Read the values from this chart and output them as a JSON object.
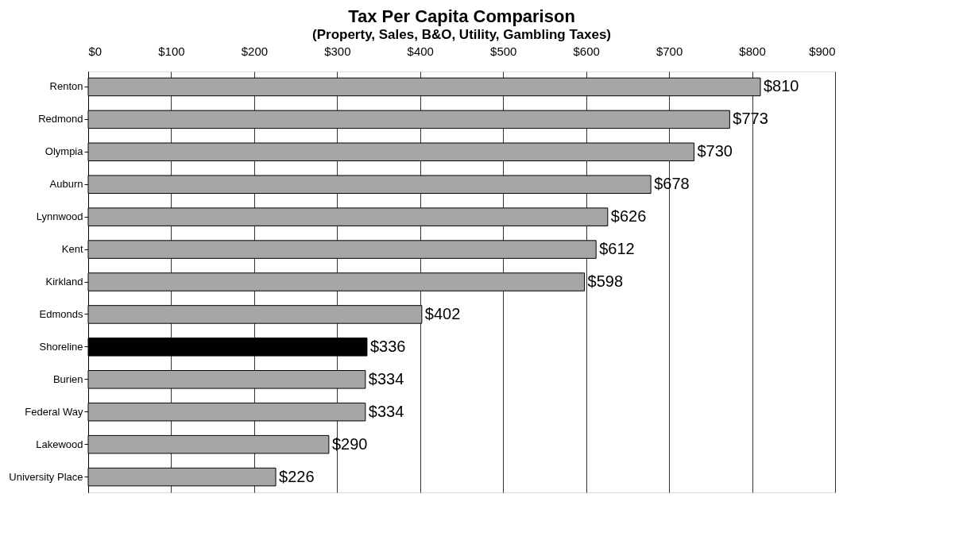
{
  "chart_data": {
    "type": "bar",
    "orientation": "horizontal",
    "title": "Tax Per Capita Comparison",
    "subtitle": "(Property, Sales, B&O, Utility, Gambling Taxes)",
    "categories": [
      "Renton",
      "Redmond",
      "Olympia",
      "Auburn",
      "Lynnwood",
      "Kent",
      "Kirkland",
      "Edmonds",
      "Shoreline",
      "Burien",
      "Federal Way",
      "Lakewood",
      "University Place"
    ],
    "values": [
      810,
      773,
      730,
      678,
      626,
      612,
      598,
      402,
      336,
      334,
      334,
      290,
      226
    ],
    "value_labels": [
      "$810",
      "$773",
      "$730",
      "$678",
      "$626",
      "$612",
      "$598",
      "$402",
      "$336",
      "$334",
      "$334",
      "$290",
      "$226"
    ],
    "colors": [
      "#a6a6a6",
      "#a6a6a6",
      "#a6a6a6",
      "#a6a6a6",
      "#a6a6a6",
      "#a6a6a6",
      "#a6a6a6",
      "#a6a6a6",
      "#000000",
      "#a6a6a6",
      "#a6a6a6",
      "#a6a6a6",
      "#a6a6a6"
    ],
    "xlim": [
      0,
      900
    ],
    "xticks": [
      {
        "value": 0,
        "label": "$0"
      },
      {
        "value": 100,
        "label": "$100"
      },
      {
        "value": 200,
        "label": "$200"
      },
      {
        "value": 300,
        "label": "$300"
      },
      {
        "value": 400,
        "label": "$400"
      },
      {
        "value": 500,
        "label": "$500"
      },
      {
        "value": 600,
        "label": "$600"
      },
      {
        "value": 700,
        "label": "$700"
      },
      {
        "value": 800,
        "label": "$800"
      },
      {
        "value": 900,
        "label": "$900"
      }
    ],
    "grid": "x"
  }
}
